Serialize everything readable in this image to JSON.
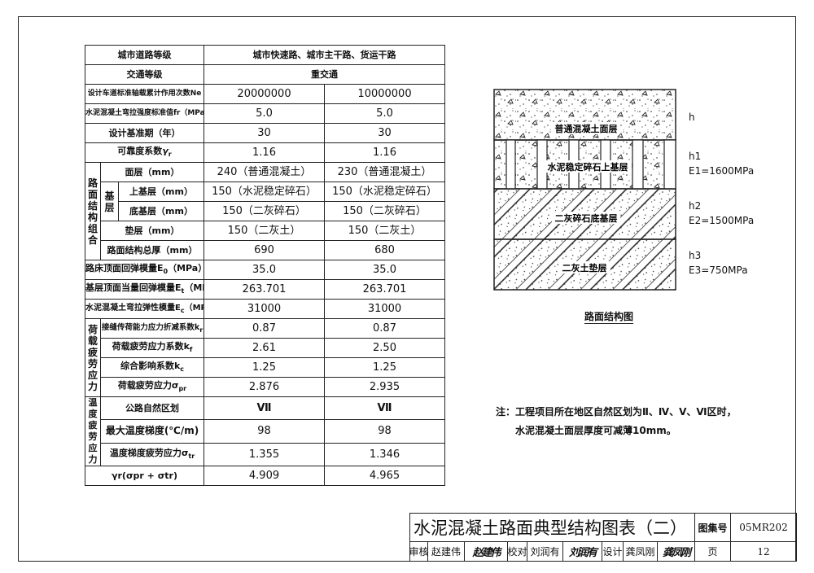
{
  "table": {
    "road_grade_label": "城市道路等级",
    "road_grade_value": "城市快速路、城市主干路、货运干路",
    "traffic_label": "交通等级",
    "traffic_value": "重交通",
    "rows_simple": [
      {
        "label": "设计车道标准轴载累计作用次数Ne",
        "v1": "20000000",
        "v2": "10000000"
      },
      {
        "label": "水泥混凝土弯拉强度标准值fr（MPa）",
        "v1": "5.0",
        "v2": "5.0"
      },
      {
        "label": "设计基准期（年）",
        "v1": "30",
        "v2": "30"
      },
      {
        "label": "可靠度系数",
        "sym": "γ",
        "sub": "r",
        "v1": "1.16",
        "v2": "1.16"
      }
    ],
    "structure_group": "路面结构组合",
    "base_group": "基层",
    "structure_rows": [
      {
        "label": "面层（mm）",
        "v1": "240（普通混凝土）",
        "v2": "230（普通混凝土）"
      },
      {
        "label": "上基层（mm）",
        "v1": "150（水泥稳定碎石）",
        "v2": "150（水泥稳定碎石）"
      },
      {
        "label": "底基层（mm）",
        "v1": "150（二灰碎石）",
        "v2": "150（二灰碎石）"
      },
      {
        "label": "垫层（mm）",
        "v1": "150（二灰土）",
        "v2": "150（二灰土）"
      },
      {
        "label": "路面结构总厚（mm）",
        "v1": "690",
        "v2": "680"
      }
    ],
    "modulus_rows": [
      {
        "label": "路床顶面回弹模量E",
        "sub": "0",
        "unit": "（MPa）",
        "v1": "35.0",
        "v2": "35.0"
      },
      {
        "label": "基层顶面当量回弹模量E",
        "sub": "t",
        "unit": "（MPa）",
        "v1": "263.701",
        "v2": "263.701"
      },
      {
        "label": "水泥混凝土弯拉弹性模量E",
        "sub": "c",
        "unit": "（MPa）",
        "v1": "31000",
        "v2": "31000"
      }
    ],
    "load_group": "荷载疲劳应力",
    "load_rows": [
      {
        "label": "接缝传荷能力应力折减系数k",
        "sub": "r",
        "v1": "0.87",
        "v2": "0.87"
      },
      {
        "label": "荷载疲劳应力系数k",
        "sub": "f",
        "v1": "2.61",
        "v2": "2.50"
      },
      {
        "label": "综合影响系数k",
        "sub": "c",
        "v1": "1.25",
        "v2": "1.25"
      },
      {
        "label": "荷载疲劳应力σ",
        "sub": "pr",
        "v1": "2.876",
        "v2": "2.935"
      }
    ],
    "temp_group": "温度疲劳应力",
    "temp_rows": [
      {
        "label": "公路自然区划",
        "sub": "",
        "v1": "Ⅶ",
        "v2": "Ⅶ"
      },
      {
        "label": "最大温度梯度(℃/m)",
        "sub": "",
        "v1": "98",
        "v2": "98"
      },
      {
        "label": "温度梯度疲劳应力σ",
        "sub": "tr",
        "v1": "1.355",
        "v2": "1.346"
      }
    ],
    "total_row": {
      "label": "γr(σpr + σtr)",
      "v1": "4.909",
      "v2": "4.965"
    }
  },
  "diagram": {
    "layers": [
      {
        "name": "普通混凝土面层",
        "thickness": "h",
        "modulus": ""
      },
      {
        "name": "水泥稳定碎石上基层",
        "thickness": "h1",
        "modulus": "E1=1600MPa"
      },
      {
        "name": "二灰碎石底基层",
        "thickness": "h2",
        "modulus": "E2=1500MPa"
      },
      {
        "name": "二灰土垫层",
        "thickness": "h3",
        "modulus": "E3=750MPa"
      }
    ],
    "caption": "路面结构图"
  },
  "note": {
    "line1": "注：工程项目所在地区自然区划为Ⅱ、Ⅳ、Ⅴ、Ⅵ区时，",
    "line2": "水泥混凝土面层厚度可减薄10mm。"
  },
  "title_block": {
    "title": "水泥混凝土路面典型结构图表（二）",
    "atlas_label": "图集号",
    "atlas_no": "05MR202",
    "review_label": "审核",
    "reviewer": "赵建伟",
    "reviewer_sig": "赵建伟",
    "check_label": "校对",
    "checker": "刘润有",
    "checker_sig": "刘润有",
    "design_label": "设计",
    "designer": "龚凤刚",
    "designer_sig": "龚凤刚",
    "page_label": "页",
    "page_no": "12"
  }
}
